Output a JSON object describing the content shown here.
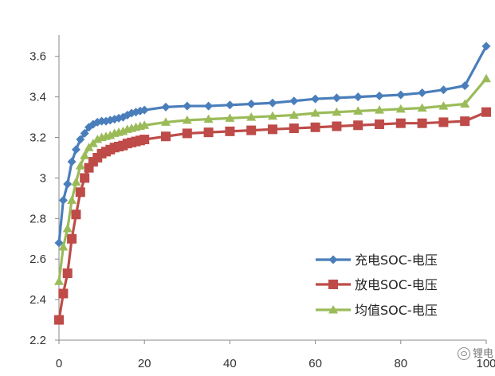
{
  "chart_data": {
    "type": "line",
    "title": "",
    "xlabel": "",
    "ylabel": "",
    "xlim": [
      0,
      100
    ],
    "ylim": [
      2.2,
      3.7
    ],
    "x_ticks": [
      "0",
      "20",
      "40",
      "60",
      "80",
      "100"
    ],
    "y_ticks": [
      "2.2",
      "2.4",
      "2.6",
      "2.8",
      "3",
      "3.2",
      "3.4",
      "3.6"
    ],
    "grid": false,
    "legend": "bottom-right",
    "x": [
      0,
      1,
      2,
      3,
      4,
      5,
      6,
      7,
      8,
      9,
      10,
      11,
      12,
      13,
      14,
      15,
      16,
      17,
      18,
      19,
      20,
      25,
      30,
      35,
      40,
      45,
      50,
      55,
      60,
      65,
      70,
      75,
      80,
      85,
      90,
      95,
      100
    ],
    "series": [
      {
        "name": "充电SOC-电压",
        "color": "#4a7ebb",
        "marker": "diamond",
        "values": [
          2.68,
          2.89,
          2.97,
          3.08,
          3.14,
          3.19,
          3.22,
          3.25,
          3.265,
          3.275,
          3.28,
          3.28,
          3.285,
          3.29,
          3.295,
          3.3,
          3.31,
          3.32,
          3.325,
          3.33,
          3.335,
          3.35,
          3.355,
          3.355,
          3.36,
          3.365,
          3.37,
          3.38,
          3.39,
          3.395,
          3.4,
          3.405,
          3.41,
          3.42,
          3.435,
          3.455,
          3.65
        ]
      },
      {
        "name": "放电SOC-电压",
        "color": "#be4b48",
        "marker": "square",
        "values": [
          2.3,
          2.43,
          2.53,
          2.7,
          2.82,
          2.93,
          3.0,
          3.05,
          3.08,
          3.1,
          3.12,
          3.13,
          3.14,
          3.15,
          3.155,
          3.16,
          3.17,
          3.175,
          3.18,
          3.185,
          3.19,
          3.205,
          3.22,
          3.225,
          3.23,
          3.235,
          3.24,
          3.245,
          3.25,
          3.255,
          3.26,
          3.265,
          3.27,
          3.27,
          3.275,
          3.28,
          3.325
        ]
      },
      {
        "name": "均值SOC-电压",
        "color": "#9bbb59",
        "marker": "triangle",
        "values": [
          2.49,
          2.66,
          2.75,
          2.89,
          2.98,
          3.06,
          3.11,
          3.15,
          3.17,
          3.19,
          3.2,
          3.205,
          3.21,
          3.22,
          3.225,
          3.23,
          3.24,
          3.245,
          3.25,
          3.255,
          3.26,
          3.275,
          3.285,
          3.29,
          3.295,
          3.3,
          3.305,
          3.31,
          3.32,
          3.325,
          3.33,
          3.335,
          3.34,
          3.345,
          3.355,
          3.365,
          3.49
        ]
      }
    ]
  },
  "watermark": {
    "text": "锂电"
  }
}
